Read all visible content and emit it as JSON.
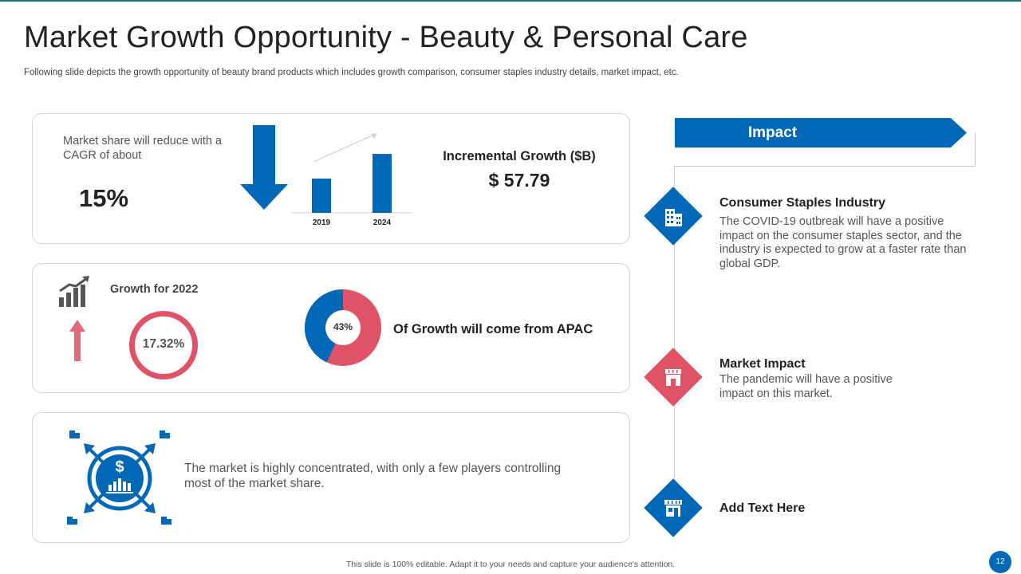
{
  "header": {
    "title": "Market Growth Opportunity - Beauty & Personal Care",
    "subtitle": "Following slide depicts the growth opportunity of beauty brand products which includes growth comparison, consumer staples industry details, market impact, etc."
  },
  "card1": {
    "share_text": "Market share will reduce with a CAGR of about",
    "share_value": "15%",
    "incremental_label": "Incremental Growth ($B)",
    "incremental_value": "$ 57.79"
  },
  "chart_data": {
    "type": "bar",
    "categories": [
      "2019",
      "2024"
    ],
    "values": [
      50,
      86
    ],
    "title": "",
    "xlabel": "",
    "ylabel": "",
    "ylim": [
      0,
      100
    ]
  },
  "card2": {
    "growth_label": "Growth for 2022",
    "growth_value": "17.32%",
    "apac_percent": "43%",
    "apac_fraction": 0.43,
    "apac_text": "Of Growth will come from APAC"
  },
  "card3": {
    "text": "The market is highly concentrated, with only a few players controlling most of the market share."
  },
  "impact": {
    "banner": "Impact",
    "items": [
      {
        "title": "Consumer Staples Industry",
        "body": "The COVID-19 outbreak will have a positive impact on the consumer staples sector, and the industry is expected to grow at a faster rate than global GDP."
      },
      {
        "title": "Market Impact",
        "body": "The pandemic will have a positive impact on this market."
      },
      {
        "title": "Add Text Here",
        "body": ""
      }
    ]
  },
  "footer": {
    "note": "This slide is 100% editable. Adapt it to your needs and capture your audience's attention.",
    "page": "12"
  },
  "colors": {
    "blue": "#0068b7",
    "red": "#e05266",
    "pink": "#e06b7c",
    "dark": "#222222",
    "gray": "#555555"
  }
}
